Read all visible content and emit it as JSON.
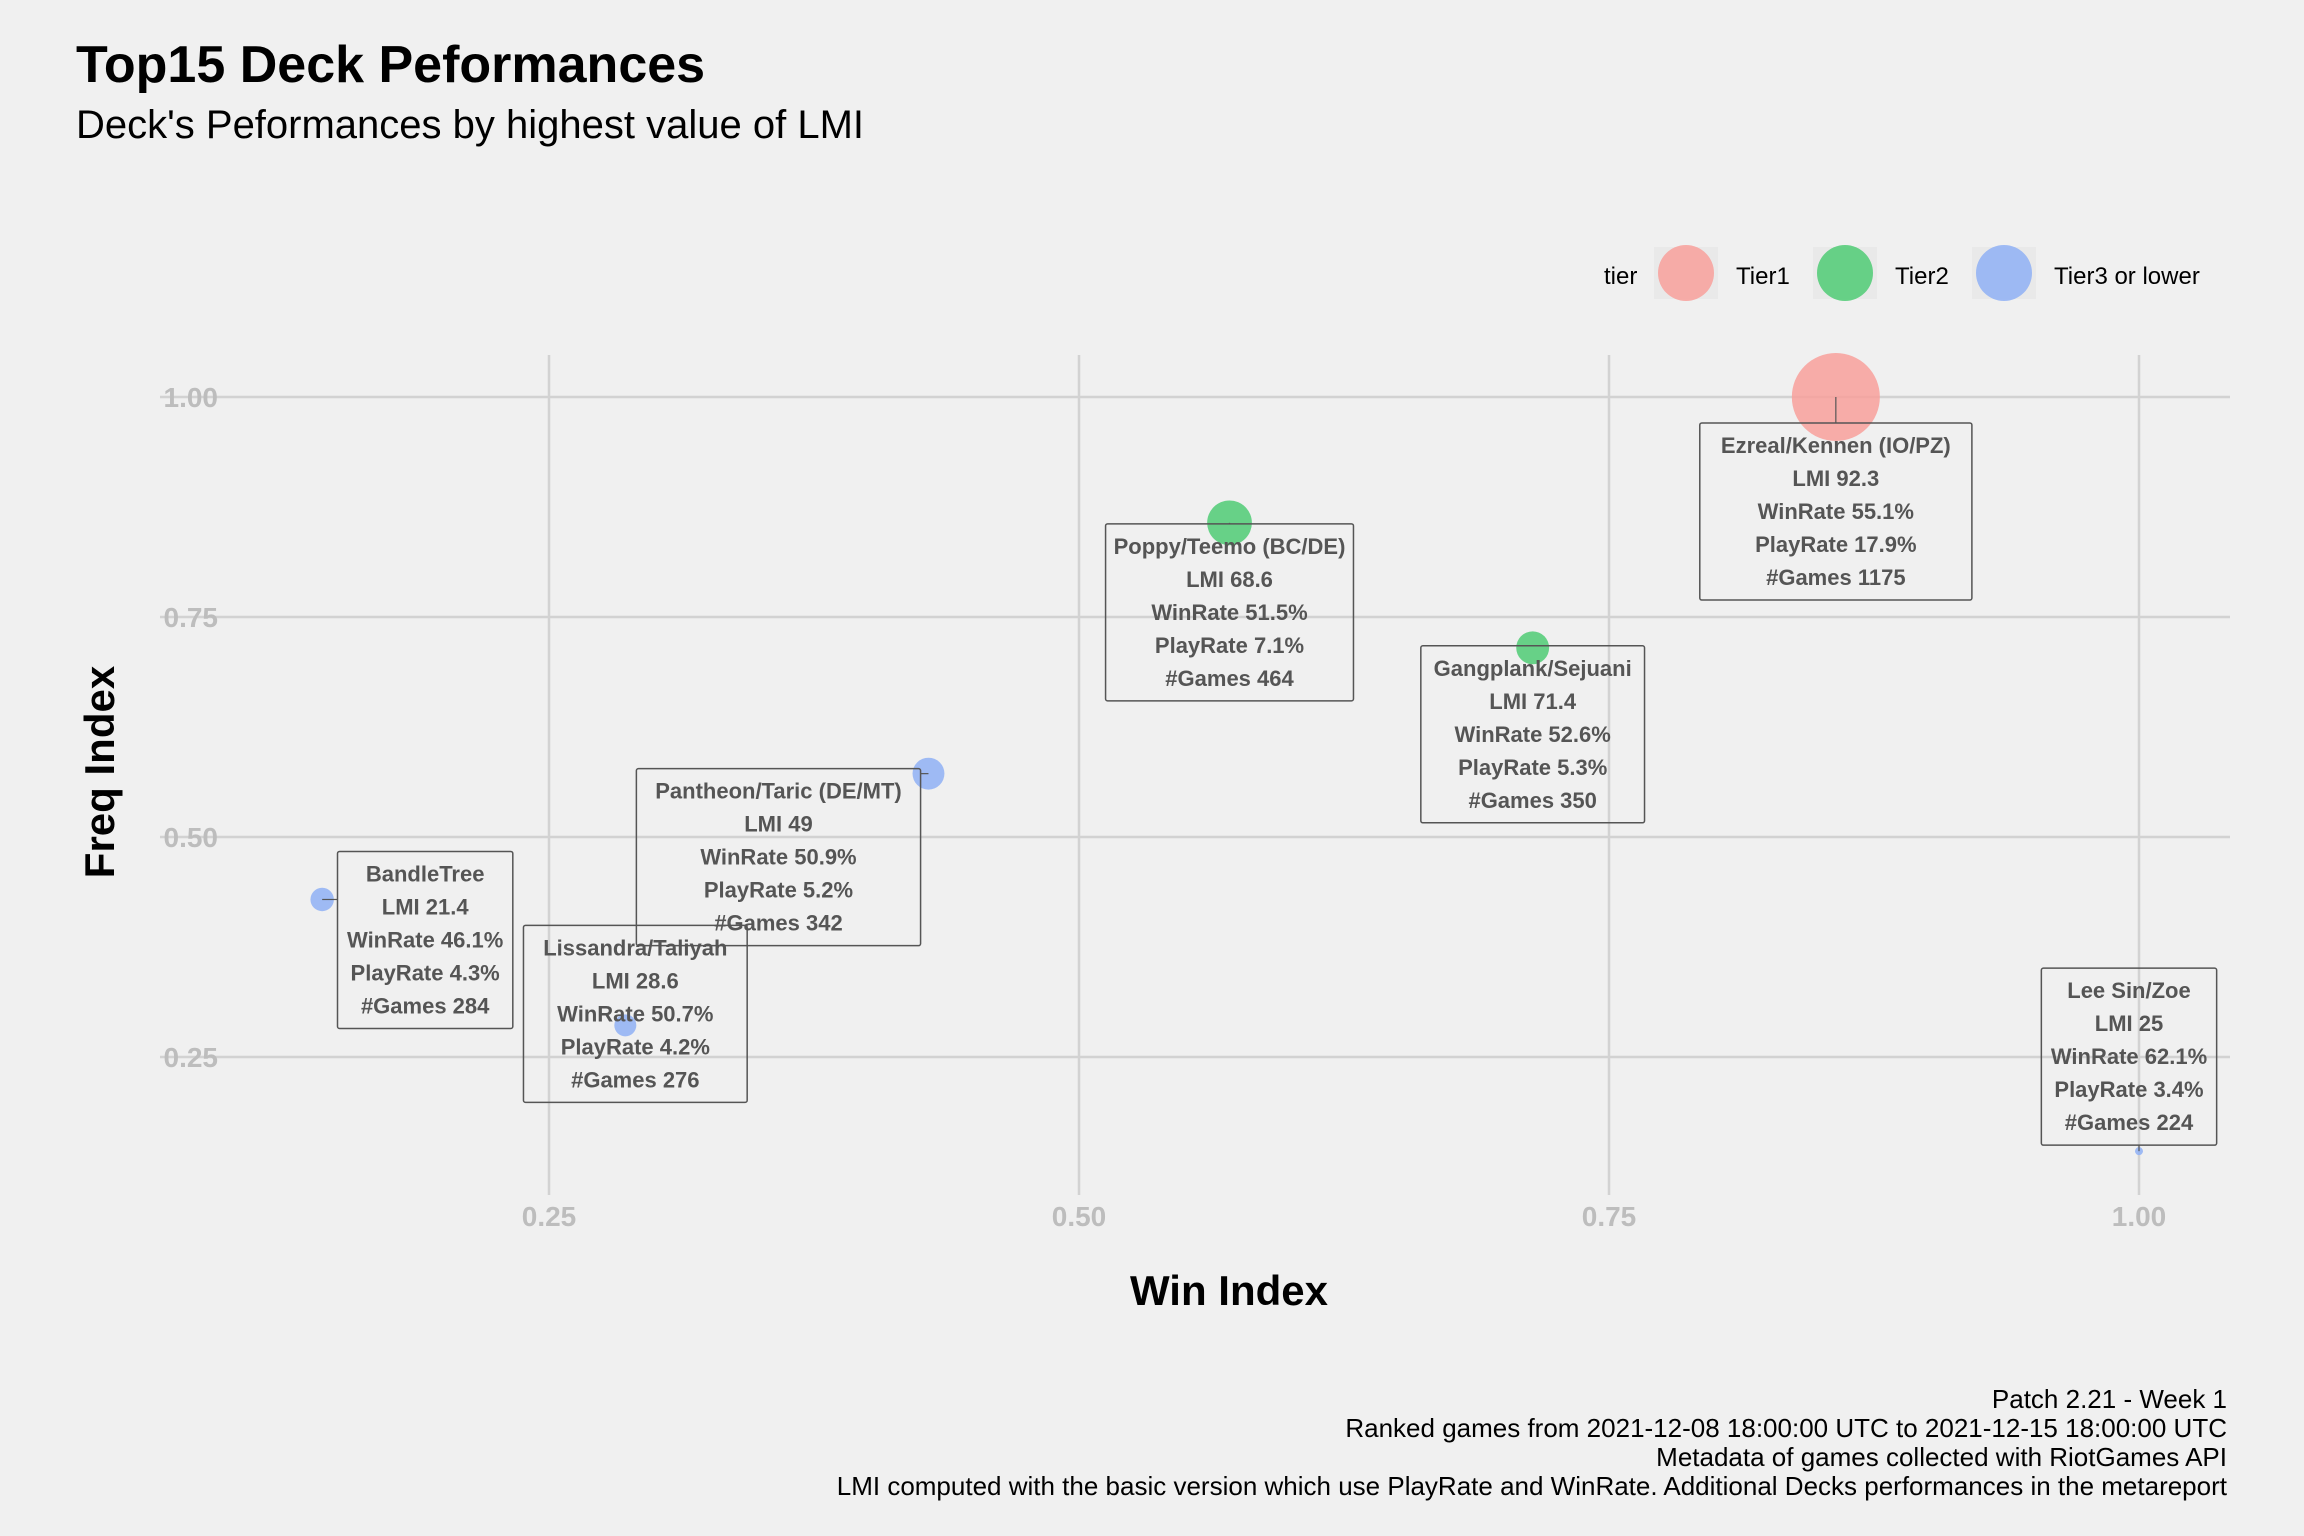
{
  "header": {
    "title": "Top15 Deck Peformances",
    "subtitle": "Deck's Peformances by highest value of LMI"
  },
  "legend": {
    "title": "tier",
    "items": [
      {
        "label": "Tier1",
        "color": "#f8a09b"
      },
      {
        "label": "Tier2",
        "color": "#4fcb74"
      },
      {
        "label": "Tier3 or lower",
        "color": "#8fb0f5"
      }
    ]
  },
  "caption": {
    "lines": [
      "Patch 2.21 - Week 1",
      "Ranked games from 2021-12-08 18:00:00 UTC to 2021-12-15 18:00:00 UTC",
      "Metadata of games collected with RiotGames API",
      "LMI computed with the basic version which use PlayRate and WinRate. Additional Decks performances in the metareport"
    ]
  },
  "chart_data": {
    "type": "scatter",
    "title": "Top15 Deck Peformances",
    "subtitle": "Deck's Peformances by highest value of LMI",
    "xlabel": "Win Index",
    "ylabel": "Freq Index",
    "xlim": [
      0.1,
      1.04
    ],
    "ylim": [
      0.1,
      1.045
    ],
    "x_ticks": [
      0.25,
      0.5,
      0.75,
      1.0
    ],
    "x_tick_labels": [
      "0.25",
      "0.50",
      "0.75",
      "1.00"
    ],
    "y_ticks": [
      0.25,
      0.5,
      0.75,
      1.0
    ],
    "y_tick_labels": [
      "0.25",
      "0.50",
      "0.75",
      "1.00"
    ],
    "grid": true,
    "legend_position": "top-right",
    "size_variable": "#Games",
    "points": [
      {
        "deck": "Ezreal/Kennen (IO/PZ)",
        "x": 0.857,
        "y": 1.0,
        "tier": "Tier1",
        "lmi": "LMI 92.3",
        "winrate": "WinRate 55.1%",
        "playrate": "PlayRate 17.9%",
        "games": "#Games 1175",
        "n_games": 1175
      },
      {
        "deck": "Gangplank/Sejuani",
        "x": 0.714,
        "y": 0.715,
        "tier": "Tier2",
        "lmi": "LMI 71.4",
        "winrate": "WinRate 52.6%",
        "playrate": "PlayRate 5.3%",
        "games": "#Games 350",
        "n_games": 350
      },
      {
        "deck": "Poppy/Teemo (BC/DE)",
        "x": 0.571,
        "y": 0.857,
        "tier": "Tier2",
        "lmi": "LMI 68.6",
        "winrate": "WinRate 51.5%",
        "playrate": "PlayRate 7.1%",
        "games": "#Games 464",
        "n_games": 464
      },
      {
        "deck": "Pantheon/Taric (DE/MT)",
        "x": 0.429,
        "y": 0.572,
        "tier": "Tier3 or lower",
        "lmi": "LMI 49",
        "winrate": "WinRate 50.9%",
        "playrate": "PlayRate 5.2%",
        "games": "#Games 342",
        "n_games": 342
      },
      {
        "deck": "Lissandra/Taliyah",
        "x": 0.286,
        "y": 0.286,
        "tier": "Tier3 or lower",
        "lmi": "LMI 28.6",
        "winrate": "WinRate 50.7%",
        "playrate": "PlayRate 4.2%",
        "games": "#Games 276",
        "n_games": 276
      },
      {
        "deck": "Lee Sin/Zoe",
        "x": 1.0,
        "y": 0.143,
        "tier": "Tier3 or lower",
        "lmi": "LMI 25",
        "winrate": "WinRate 62.1%",
        "playrate": "PlayRate 3.4%",
        "games": "#Games 224",
        "n_games": 224
      },
      {
        "deck": "BandleTree",
        "x": 0.143,
        "y": 0.429,
        "tier": "Tier3 or lower",
        "lmi": "LMI 21.4",
        "winrate": "WinRate 46.1%",
        "playrate": "PlayRate 4.3%",
        "games": "#Games 284",
        "n_games": 284
      }
    ]
  }
}
